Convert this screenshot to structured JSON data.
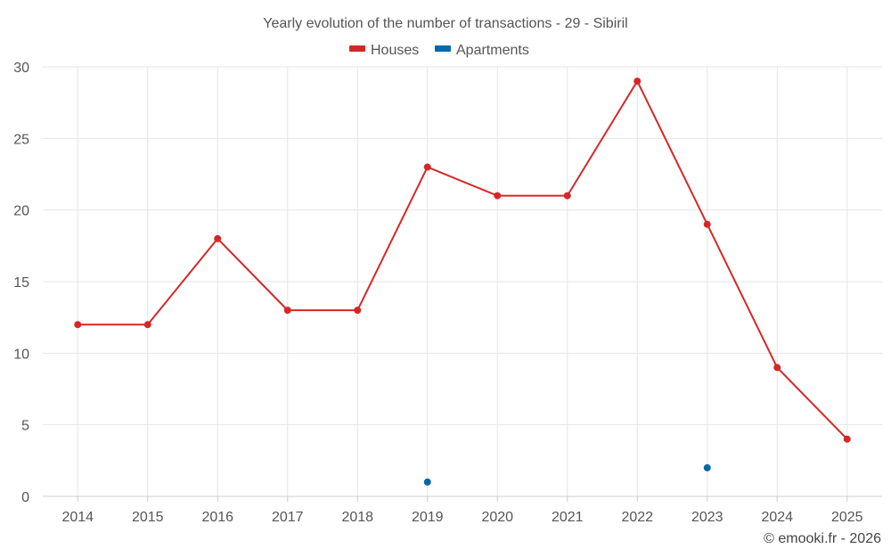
{
  "chart_data": {
    "type": "line",
    "title": "Yearly evolution of the number of transactions - 29 - Sibiril",
    "xlabel": "",
    "ylabel": "",
    "categories": [
      "2014",
      "2015",
      "2016",
      "2017",
      "2018",
      "2019",
      "2020",
      "2021",
      "2022",
      "2023",
      "2024",
      "2025"
    ],
    "series": [
      {
        "name": "Houses",
        "color": "#d62728",
        "values": [
          12,
          12,
          18,
          13,
          13,
          23,
          21,
          21,
          29,
          19,
          9,
          4
        ]
      },
      {
        "name": "Apartments",
        "color": "#0868a8",
        "values": [
          null,
          null,
          null,
          null,
          null,
          1,
          null,
          null,
          null,
          2,
          null,
          null
        ]
      }
    ],
    "ylim": [
      0,
      30
    ],
    "yticks": [
      0,
      5,
      10,
      15,
      20,
      25,
      30
    ],
    "grid": true,
    "legend_position": "top-center"
  },
  "credit": "© emooki.fr - 2026"
}
